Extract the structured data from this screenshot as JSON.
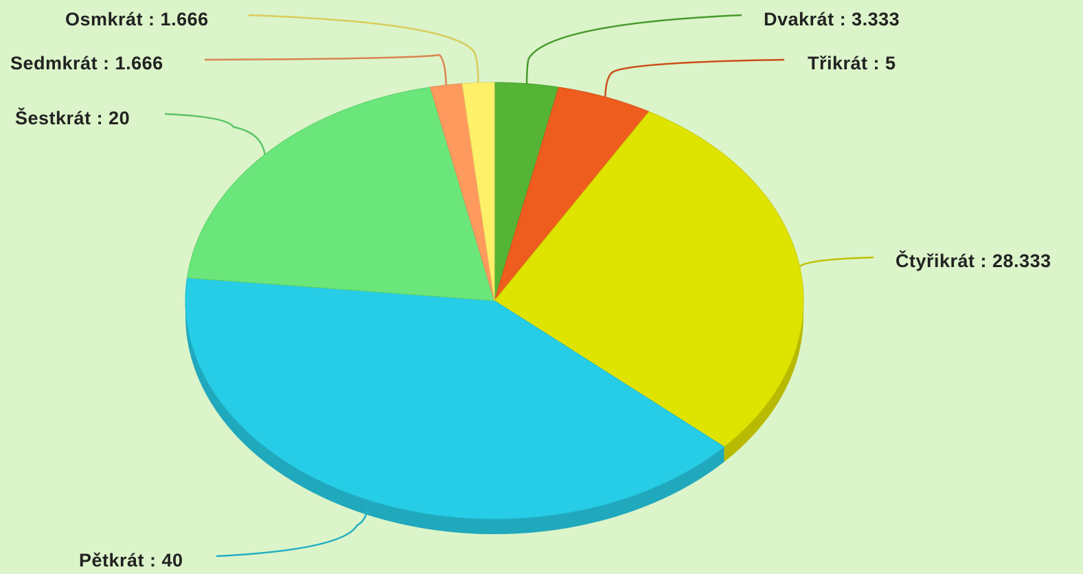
{
  "chart_data": {
    "type": "pie",
    "style": "3d-tilted",
    "label_separator": " : ",
    "background": "#dbf4c9",
    "slices": [
      {
        "label": "Dvakrát",
        "value": 3.333,
        "color": "#55b435"
      },
      {
        "label": "Třikrát",
        "value": 5,
        "color": "#ee5c1e"
      },
      {
        "label": "Čtyřikrát",
        "value": 28.333,
        "color": "#dfe300"
      },
      {
        "label": "Pětkrát",
        "value": 40,
        "color": "#27cde6"
      },
      {
        "label": "Šestkrát",
        "value": 20,
        "color": "#6ae67a"
      },
      {
        "label": "Sedmkrát",
        "value": 1.666,
        "color": "#ff9a5e"
      },
      {
        "label": "Osmkrát",
        "value": 1.666,
        "color": "#fff06a"
      }
    ]
  }
}
